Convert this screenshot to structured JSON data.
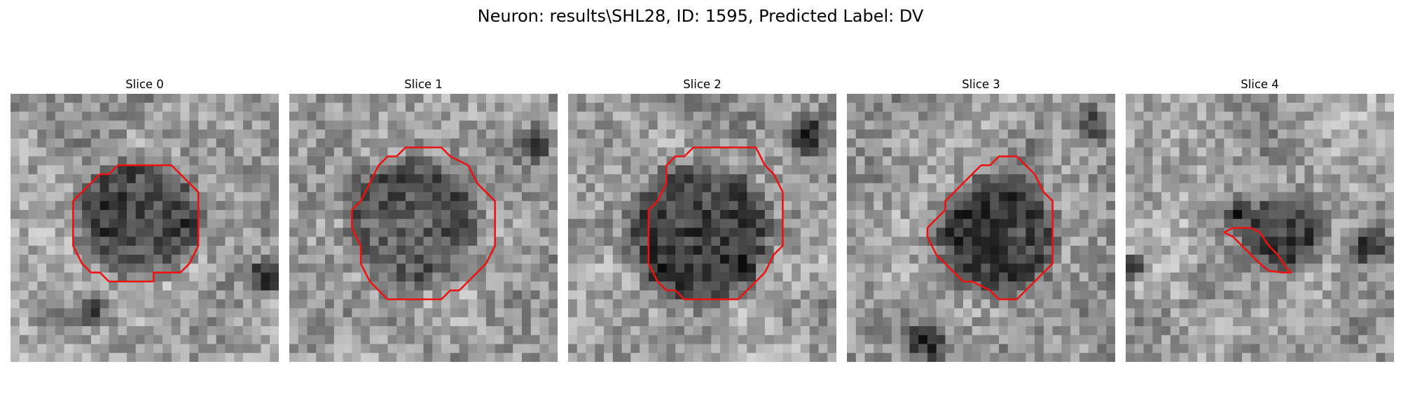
{
  "figure": {
    "title": "Neuron: results\\SHL28, ID: 1595, Predicted Label: DV"
  },
  "image_grid": {
    "rows": 30,
    "cols": 30,
    "colormap": "gray"
  },
  "contour_color": "#ee1111",
  "panels": [
    {
      "title": "Slice 0",
      "blob": {
        "cx": 14.5,
        "cy": 14.0,
        "r": 6.5,
        "depth": 0.32
      },
      "dark_spots": [
        {
          "cx": 28.5,
          "cy": 20.5,
          "r": 2.5,
          "depth": 0.6
        },
        {
          "cx": 9.0,
          "cy": 24.0,
          "r": 2.5,
          "depth": 0.35
        }
      ],
      "contour": [
        [
          7,
          12
        ],
        [
          9,
          10
        ],
        [
          10,
          9
        ],
        [
          11,
          9
        ],
        [
          12,
          8
        ],
        [
          18,
          8
        ],
        [
          19,
          9
        ],
        [
          20,
          10
        ],
        [
          21,
          11
        ],
        [
          21,
          17
        ],
        [
          20,
          19
        ],
        [
          19,
          20
        ],
        [
          16,
          20
        ],
        [
          16,
          21
        ],
        [
          11,
          21
        ],
        [
          10,
          20
        ],
        [
          9,
          20
        ],
        [
          8,
          19
        ],
        [
          7,
          17
        ]
      ],
      "seed": 11
    },
    {
      "title": "Slice 1",
      "blob": {
        "cx": 13.5,
        "cy": 14.5,
        "r": 7.0,
        "depth": 0.3
      },
      "dark_spots": [
        {
          "cx": 27.5,
          "cy": 5.5,
          "r": 2.5,
          "depth": 0.55
        },
        {
          "cx": 3.0,
          "cy": 26.0,
          "r": 3.0,
          "depth": 0.3
        }
      ],
      "contour": [
        [
          8,
          12
        ],
        [
          9,
          10
        ],
        [
          10,
          8
        ],
        [
          11,
          7
        ],
        [
          12,
          7
        ],
        [
          13,
          6
        ],
        [
          17,
          6
        ],
        [
          18,
          7
        ],
        [
          20,
          8
        ],
        [
          21,
          10
        ],
        [
          22,
          11
        ],
        [
          23,
          12
        ],
        [
          23,
          17
        ],
        [
          22,
          19
        ],
        [
          21,
          20
        ],
        [
          20,
          21
        ],
        [
          19,
          22
        ],
        [
          18,
          22
        ],
        [
          17,
          23
        ],
        [
          11,
          23
        ],
        [
          10,
          22
        ],
        [
          9,
          21
        ],
        [
          8,
          19
        ],
        [
          8,
          17
        ],
        [
          7,
          15
        ],
        [
          7,
          13
        ]
      ],
      "seed": 23
    },
    {
      "title": "Slice 2",
      "blob": {
        "cx": 14.5,
        "cy": 15.5,
        "r": 7.5,
        "depth": 0.38
      },
      "dark_spots": [
        {
          "cx": 26.5,
          "cy": 4.5,
          "r": 3.0,
          "depth": 0.6
        }
      ],
      "contour": [
        [
          10,
          12
        ],
        [
          11,
          10
        ],
        [
          11,
          8
        ],
        [
          12,
          7
        ],
        [
          13,
          7
        ],
        [
          14,
          6
        ],
        [
          21,
          6
        ],
        [
          22,
          8
        ],
        [
          23,
          9
        ],
        [
          24,
          11
        ],
        [
          24,
          17
        ],
        [
          23,
          18
        ],
        [
          22,
          20
        ],
        [
          21,
          21
        ],
        [
          20,
          22
        ],
        [
          19,
          23
        ],
        [
          16,
          23
        ],
        [
          14,
          23
        ],
        [
          13,
          23
        ],
        [
          12,
          22
        ],
        [
          11,
          22
        ],
        [
          10,
          21
        ],
        [
          9,
          19
        ],
        [
          9,
          13
        ]
      ],
      "seed": 37
    },
    {
      "title": "Slice 3",
      "blob": {
        "cx": 17.0,
        "cy": 16.0,
        "r": 6.3,
        "depth": 0.36
      },
      "dark_spots": [
        {
          "cx": 9.0,
          "cy": 27.5,
          "r": 3.0,
          "depth": 0.55
        },
        {
          "cx": 27.5,
          "cy": 3.5,
          "r": 2.5,
          "depth": 0.35
        }
      ],
      "contour": [
        [
          10,
          14
        ],
        [
          11,
          13
        ],
        [
          11,
          12
        ],
        [
          12,
          11
        ],
        [
          13,
          10
        ],
        [
          14,
          9
        ],
        [
          15,
          8
        ],
        [
          16,
          8
        ],
        [
          17,
          7
        ],
        [
          19,
          7
        ],
        [
          20,
          8
        ],
        [
          21,
          9
        ],
        [
          22,
          11
        ],
        [
          23,
          12
        ],
        [
          23,
          19
        ],
        [
          22,
          20
        ],
        [
          21,
          21
        ],
        [
          20,
          22
        ],
        [
          19,
          23
        ],
        [
          18,
          23
        ],
        [
          17,
          23
        ],
        [
          16,
          22
        ],
        [
          14,
          21
        ],
        [
          13,
          21
        ],
        [
          12,
          20
        ],
        [
          11,
          19
        ],
        [
          10,
          18
        ],
        [
          9,
          16
        ],
        [
          9,
          15
        ]
      ],
      "seed": 53
    },
    {
      "title": "Slice 4",
      "blob": {
        "cx": 18.0,
        "cy": 15.5,
        "r": 4.0,
        "depth": 0.38
      },
      "dark_spots": [
        {
          "cx": 12.5,
          "cy": 13.5,
          "r": 2.5,
          "depth": 0.4
        },
        {
          "cx": 27.0,
          "cy": 17.0,
          "r": 3.0,
          "depth": 0.45
        },
        {
          "cx": 1.0,
          "cy": 19.5,
          "r": 2.0,
          "depth": 0.6
        }
      ],
      "contour": [
        [
          11,
          15.5
        ],
        [
          12,
          15
        ],
        [
          14,
          15
        ],
        [
          15,
          15.5
        ],
        [
          16,
          17
        ],
        [
          17,
          18
        ],
        [
          18,
          19.5
        ],
        [
          18.5,
          20
        ],
        [
          17.5,
          20
        ],
        [
          16,
          19.8
        ],
        [
          15,
          19
        ],
        [
          14,
          18
        ],
        [
          13,
          17
        ],
        [
          12,
          16
        ]
      ],
      "seed": 71
    }
  ]
}
